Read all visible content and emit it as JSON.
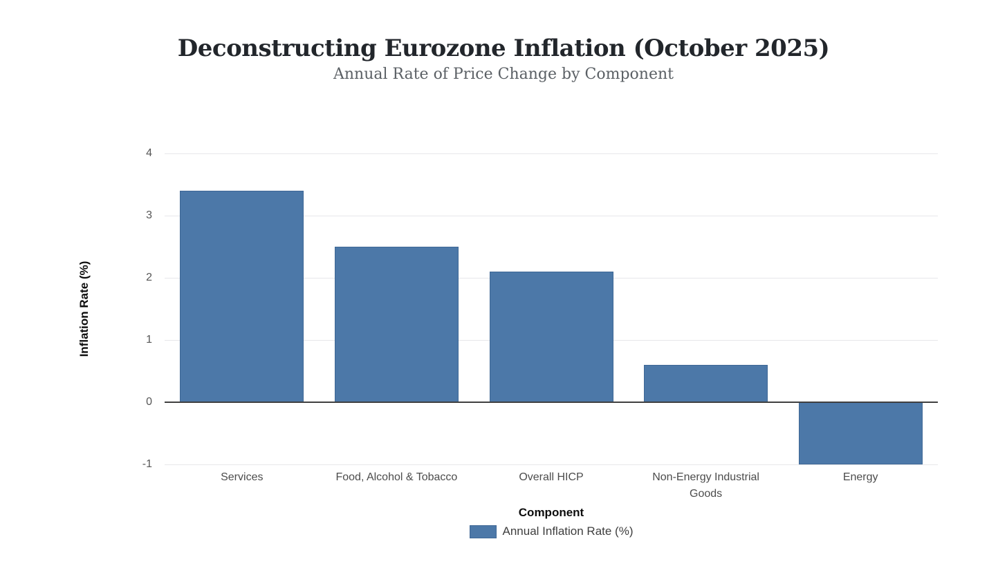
{
  "chart_data": {
    "type": "bar",
    "title": "Deconstructing Eurozone Inflation (October 2025)",
    "subtitle": "Annual Rate of Price Change by Component",
    "categories": [
      "Services",
      "Food, Alcohol & Tobacco",
      "Overall HICP",
      "Non-Energy Industrial Goods",
      "Energy"
    ],
    "series": [
      {
        "name": "Annual Inflation Rate (%)",
        "values": [
          3.4,
          2.5,
          2.1,
          0.6,
          -1.0
        ]
      }
    ],
    "xlabel": "Component",
    "ylabel": "Inflation Rate (%)",
    "yticks": [
      4,
      3,
      2,
      1,
      0,
      -1
    ],
    "ylim": [
      -1,
      4
    ],
    "grid": true,
    "legend_position": "bottom",
    "colors": {
      "bar": "#4c78a8",
      "grid_line": "#e7e7ea",
      "zero_line": "#3f3f3f",
      "title": "#22262b",
      "subtitle": "#5b6065",
      "tick_label": "#565656"
    }
  }
}
